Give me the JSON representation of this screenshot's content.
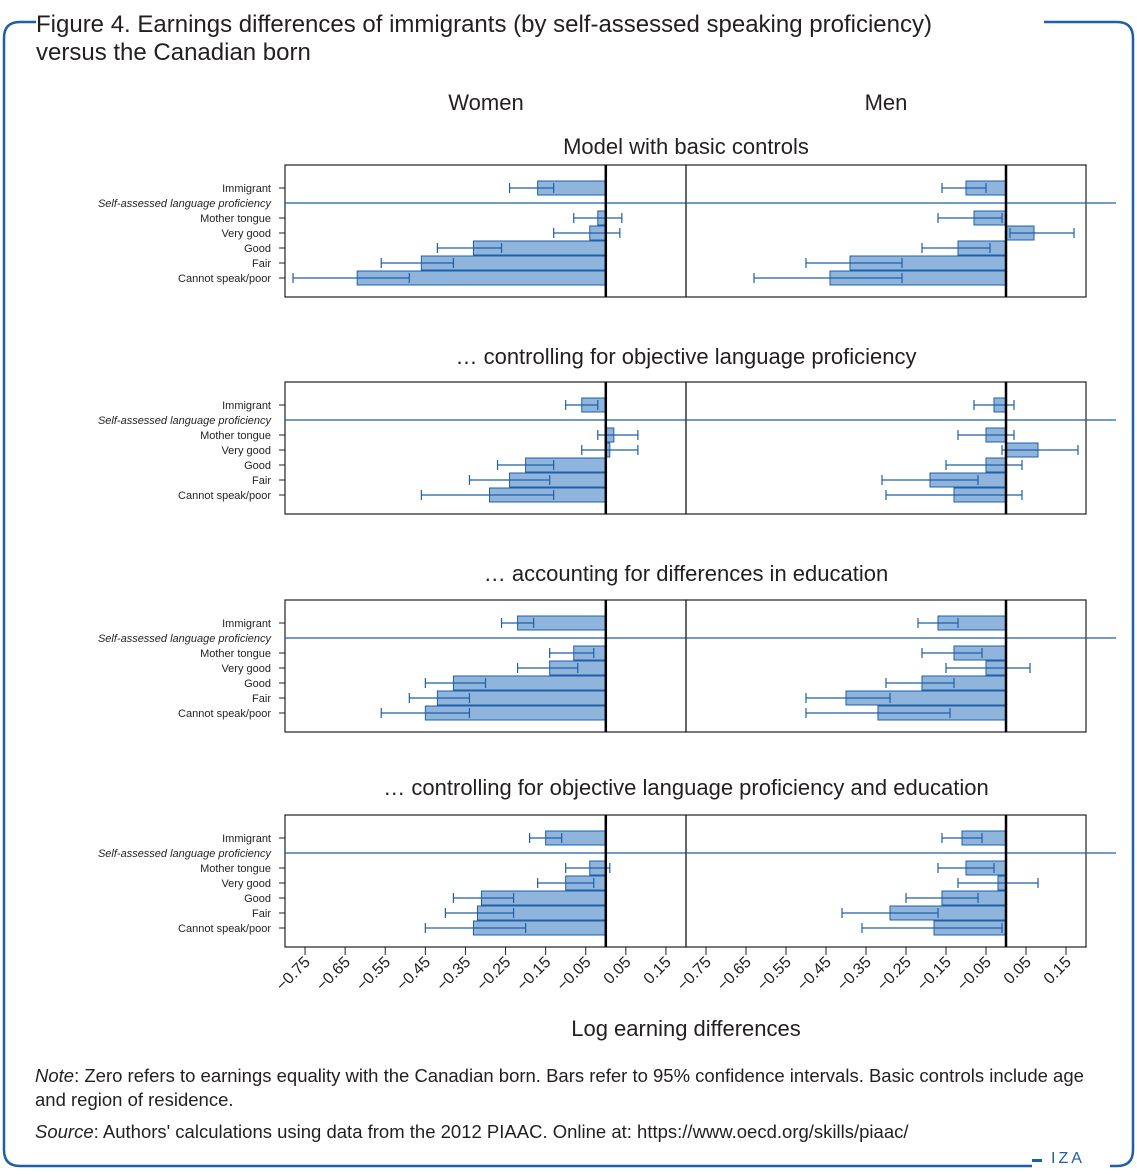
{
  "title_line1": "Figure 4. Earnings differences of immigrants (by self-assessed speaking proficiency)",
  "title_line2": "versus the Canadian born",
  "note_label": "Note",
  "note_text": ": Zero refers to earnings equality with the Canadian born. Bars refer to 95% confidence intervals. Basic controls include age and region of residence.",
  "source_label": "Source",
  "source_text": ": Authors' calculations using data from the 2012 PIAAC. Online at: https://www.oecd.org/skills/piaac/",
  "logo": "IZA",
  "colors": {
    "frame": "#1f5fa8",
    "bar_fill": "#8fb5dc",
    "bar_edge": "#1f5fa8",
    "zero_line": "#000000"
  },
  "chart_data": {
    "type": "bar",
    "orientation": "horizontal",
    "columns": [
      "Women",
      "Men"
    ],
    "xlabel": "Log earning differences",
    "xticks": [
      -0.75,
      -0.65,
      -0.55,
      -0.45,
      -0.35,
      -0.25,
      -0.15,
      -0.05,
      0.05,
      0.15
    ],
    "xlim": [
      -0.8,
      0.2
    ],
    "rows": [
      "Immigrant",
      "Self-assessed language proficiency",
      "Mother tongue",
      "Very good",
      "Good",
      "Fair",
      "Cannot speak/poor"
    ],
    "panels": [
      {
        "title": "Model with basic controls",
        "women": {
          "Immigrant": [
            -0.17,
            -0.24,
            -0.13
          ],
          "Mother tongue": [
            -0.02,
            -0.08,
            0.04
          ],
          "Very good": [
            -0.04,
            -0.13,
            0.035
          ],
          "Good": [
            -0.33,
            -0.42,
            -0.26
          ],
          "Fair": [
            -0.46,
            -0.56,
            -0.38
          ],
          "Cannot speak/poor": [
            -0.62,
            -0.78,
            -0.49
          ]
        },
        "men": {
          "Immigrant": [
            -0.1,
            -0.16,
            -0.05
          ],
          "Mother tongue": [
            -0.08,
            -0.17,
            -0.01
          ],
          "Very good": [
            0.07,
            0.01,
            0.17
          ],
          "Good": [
            -0.12,
            -0.21,
            -0.04
          ],
          "Fair": [
            -0.39,
            -0.5,
            -0.26
          ],
          "Cannot speak/poor": [
            -0.44,
            -0.63,
            -0.26
          ]
        }
      },
      {
        "title": "… controlling for objective language proficiency",
        "women": {
          "Immigrant": [
            -0.06,
            -0.1,
            -0.02
          ],
          "Mother tongue": [
            0.02,
            -0.02,
            0.08
          ],
          "Very good": [
            0.01,
            -0.06,
            0.08
          ],
          "Good": [
            -0.2,
            -0.27,
            -0.13
          ],
          "Fair": [
            -0.24,
            -0.34,
            -0.14
          ],
          "Cannot speak/poor": [
            -0.29,
            -0.46,
            -0.13
          ]
        },
        "men": {
          "Immigrant": [
            -0.03,
            -0.08,
            0.02
          ],
          "Mother tongue": [
            -0.05,
            -0.12,
            0.02
          ],
          "Very good": [
            0.08,
            -0.01,
            0.18
          ],
          "Good": [
            -0.05,
            -0.15,
            0.04
          ],
          "Fair": [
            -0.19,
            -0.31,
            -0.07
          ],
          "Cannot speak/poor": [
            -0.13,
            -0.3,
            0.04
          ]
        }
      },
      {
        "title": "… accounting for differences in education",
        "women": {
          "Immigrant": [
            -0.22,
            -0.26,
            -0.18
          ],
          "Mother tongue": [
            -0.08,
            -0.14,
            -0.03
          ],
          "Very good": [
            -0.14,
            -0.22,
            -0.07
          ],
          "Good": [
            -0.38,
            -0.45,
            -0.3
          ],
          "Fair": [
            -0.42,
            -0.49,
            -0.34
          ],
          "Cannot speak/poor": [
            -0.45,
            -0.56,
            -0.34
          ]
        },
        "men": {
          "Immigrant": [
            -0.17,
            -0.22,
            -0.12
          ],
          "Mother tongue": [
            -0.13,
            -0.21,
            -0.06
          ],
          "Very good": [
            -0.05,
            -0.15,
            0.06
          ],
          "Good": [
            -0.21,
            -0.3,
            -0.13
          ],
          "Fair": [
            -0.4,
            -0.5,
            -0.29
          ],
          "Cannot speak/poor": [
            -0.32,
            -0.5,
            -0.14
          ]
        }
      },
      {
        "title": "… controlling for objective language proficiency and education",
        "women": {
          "Immigrant": [
            -0.15,
            -0.19,
            -0.11
          ],
          "Mother tongue": [
            -0.04,
            -0.1,
            0.01
          ],
          "Very good": [
            -0.1,
            -0.17,
            -0.03
          ],
          "Good": [
            -0.31,
            -0.38,
            -0.23
          ],
          "Fair": [
            -0.32,
            -0.4,
            -0.23
          ],
          "Cannot speak/poor": [
            -0.33,
            -0.45,
            -0.2
          ]
        },
        "men": {
          "Immigrant": [
            -0.11,
            -0.16,
            -0.06
          ],
          "Mother tongue": [
            -0.1,
            -0.17,
            -0.03
          ],
          "Very good": [
            -0.02,
            -0.12,
            0.08
          ],
          "Good": [
            -0.16,
            -0.25,
            -0.07
          ],
          "Fair": [
            -0.29,
            -0.41,
            -0.17
          ],
          "Cannot speak/poor": [
            -0.18,
            -0.36,
            -0.01
          ]
        }
      }
    ]
  }
}
